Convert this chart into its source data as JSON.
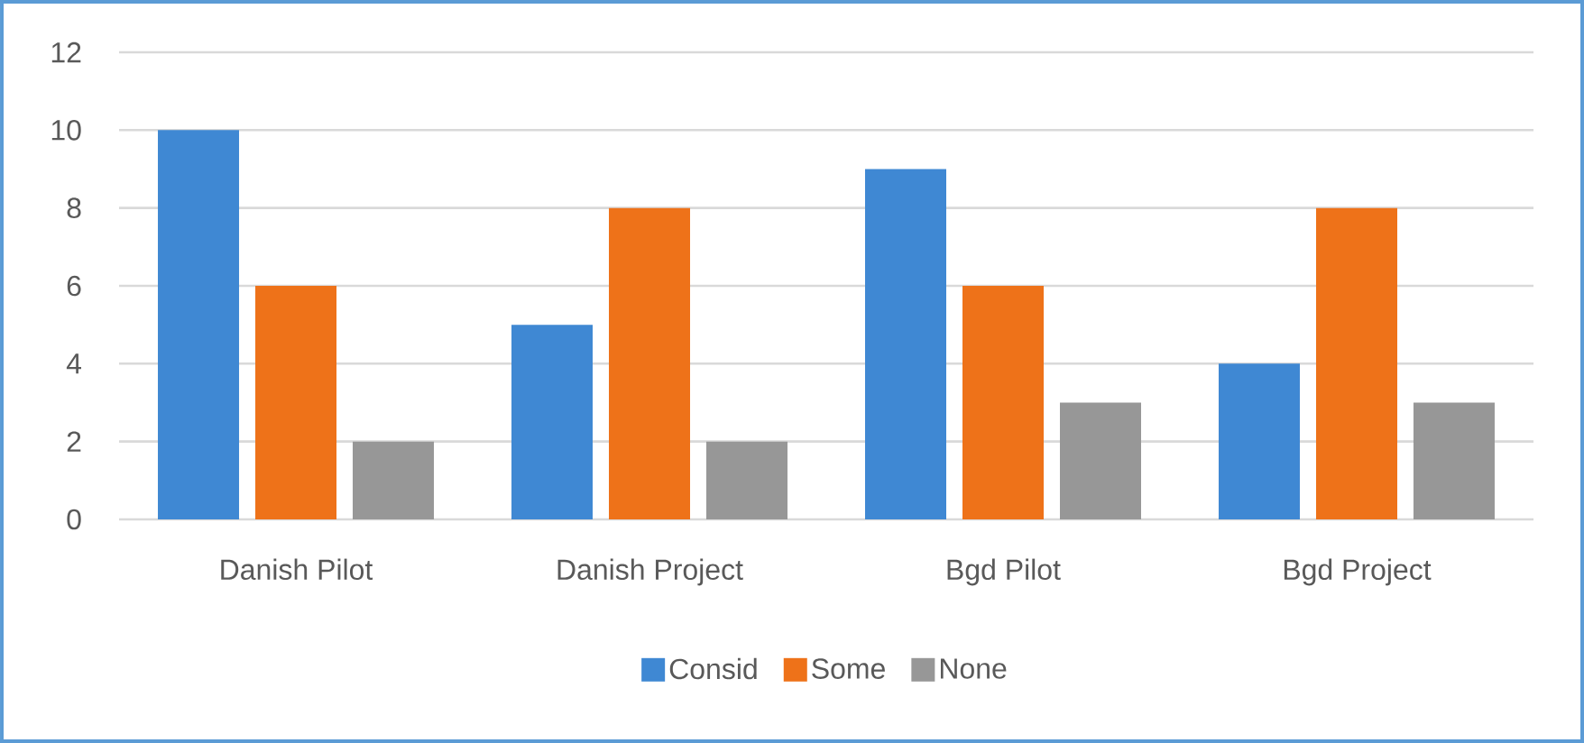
{
  "chart_data": {
    "type": "bar",
    "categories": [
      "Danish Pilot",
      "Danish Project",
      "Bgd Pilot",
      "Bgd Project"
    ],
    "series": [
      {
        "name": "Consid",
        "color": "#3f88d3",
        "values": [
          10,
          5,
          9,
          4
        ]
      },
      {
        "name": "Some",
        "color": "#ee7219",
        "values": [
          6,
          8,
          6,
          8
        ]
      },
      {
        "name": "None",
        "color": "#979797",
        "values": [
          2,
          2,
          3,
          3
        ]
      }
    ],
    "ylim": [
      0,
      12
    ],
    "yticks": [
      0,
      2,
      4,
      6,
      8,
      10,
      12
    ],
    "grid": "y",
    "legend": "bottom"
  }
}
